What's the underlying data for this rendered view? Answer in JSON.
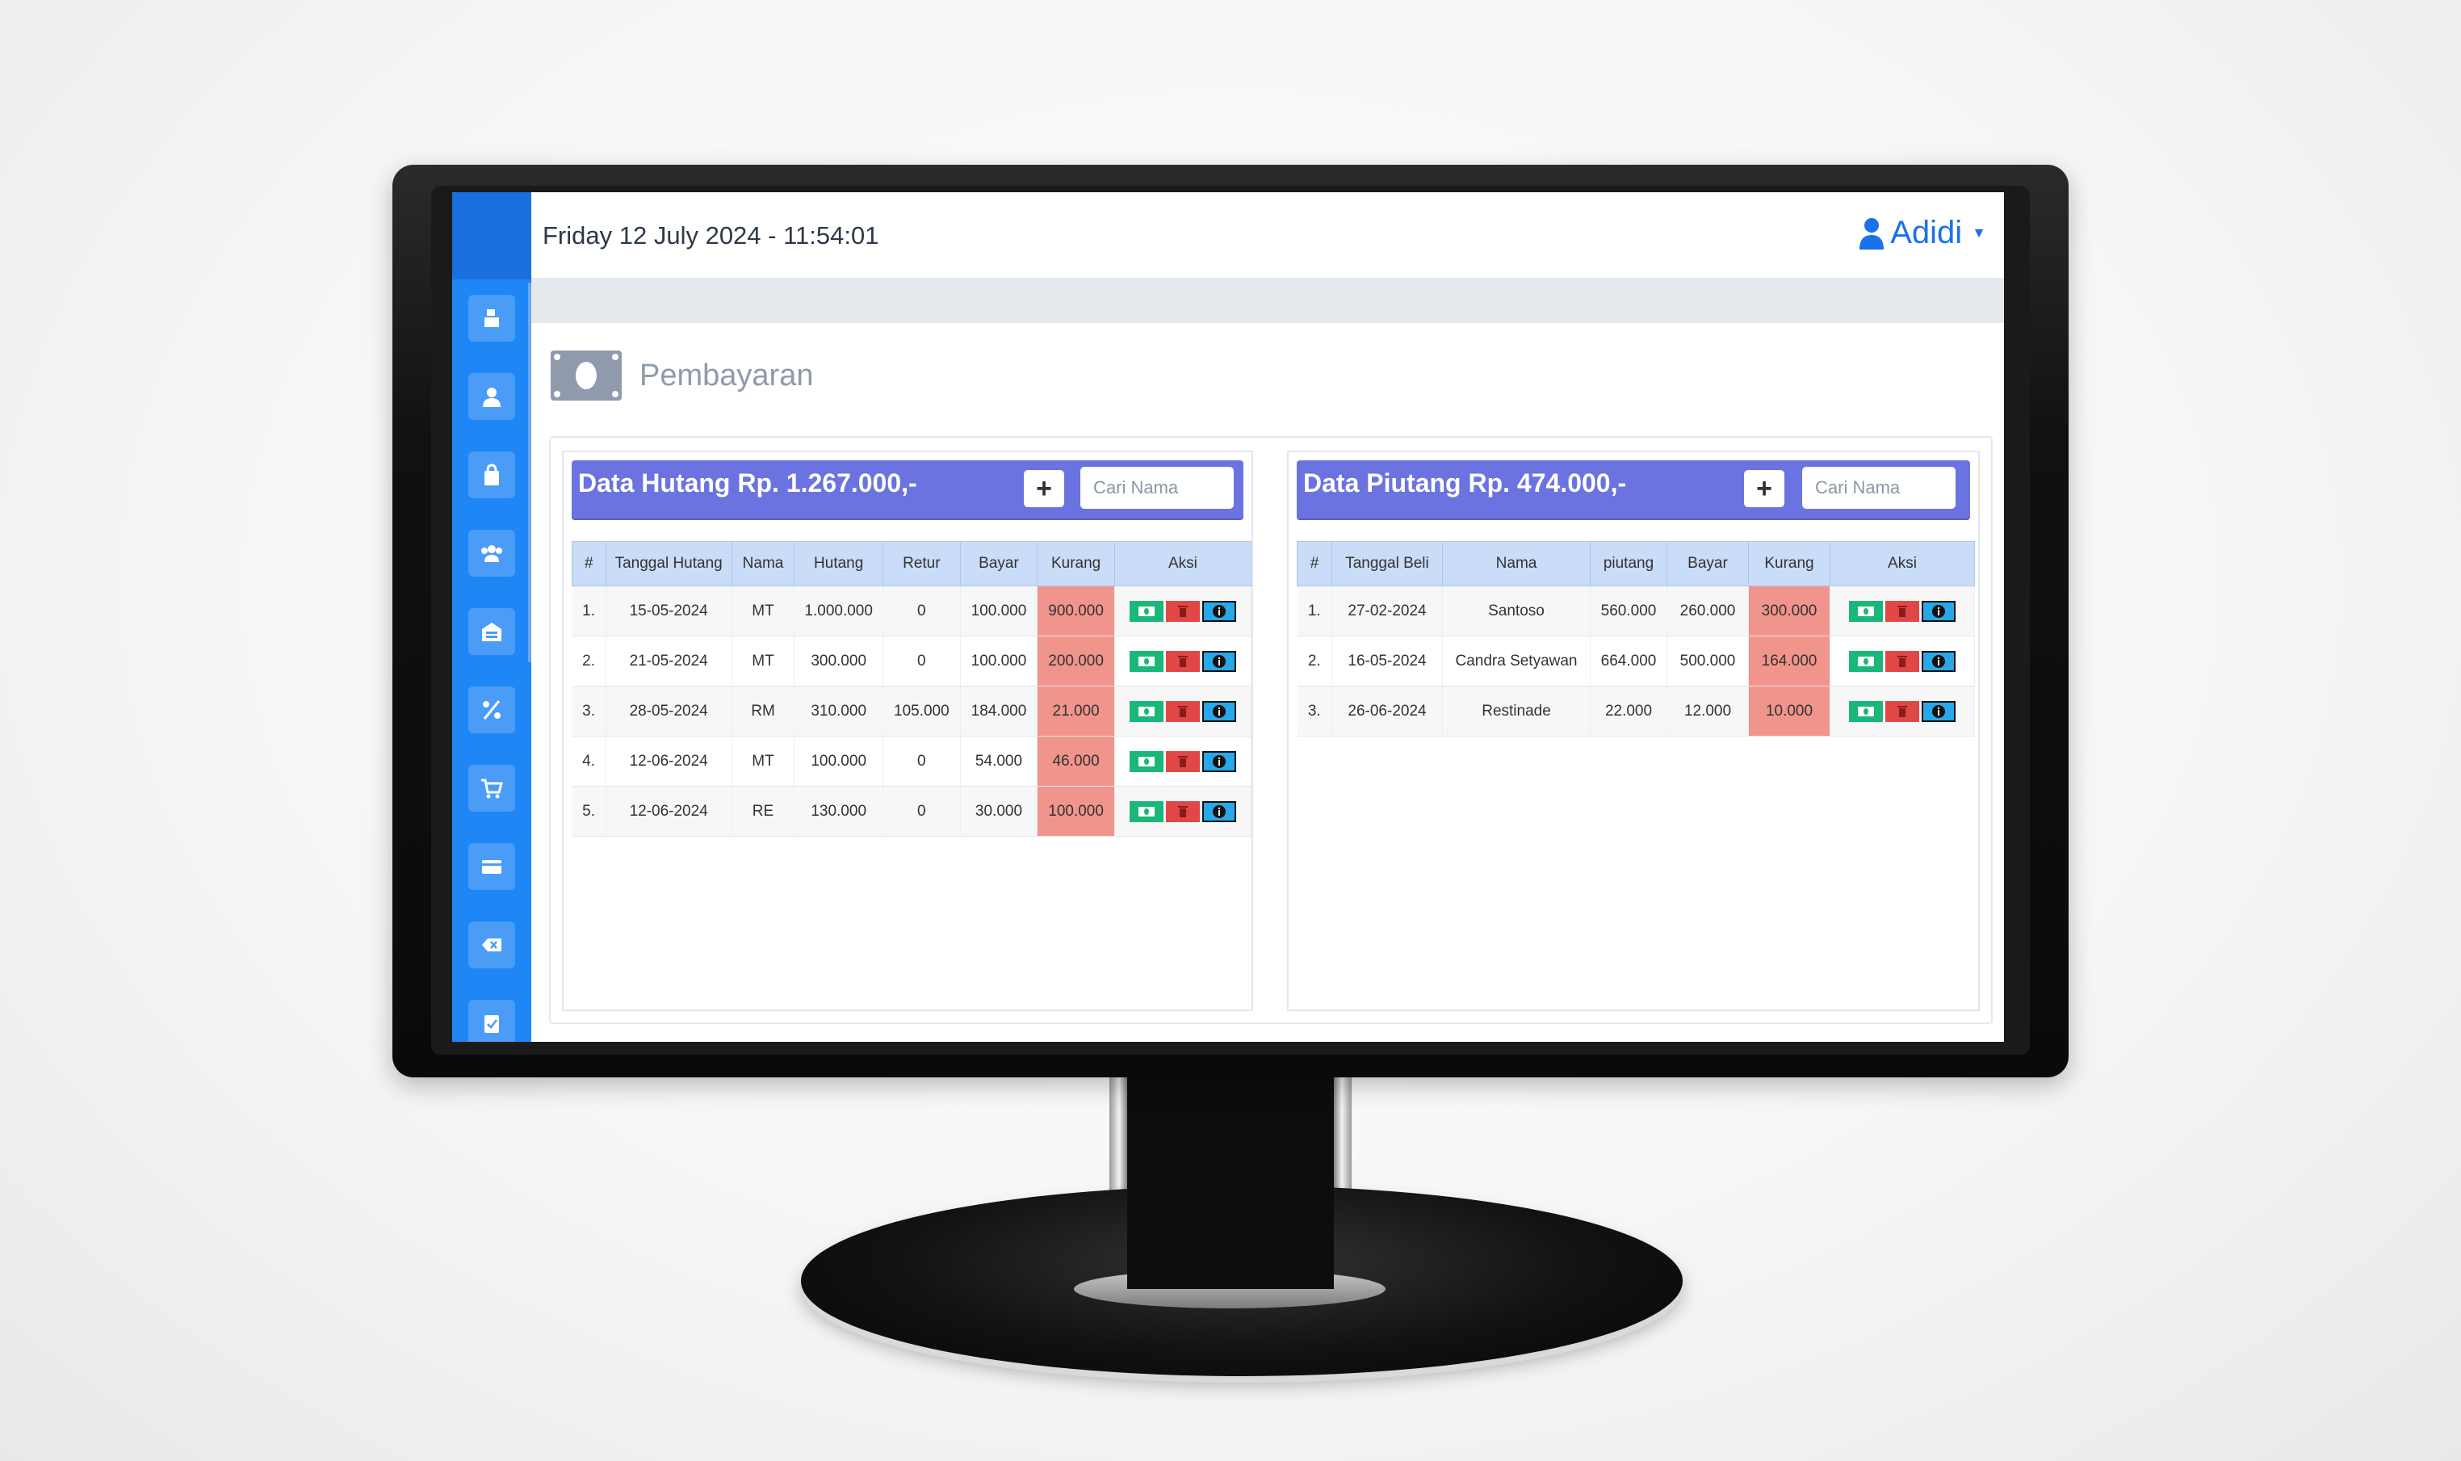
{
  "header": {
    "datetime": "Friday 12 July 2024 - 11:54:01",
    "user_name": "Adidi"
  },
  "sidebar": {
    "items": [
      {
        "icon": "cash-register-icon"
      },
      {
        "icon": "user-icon"
      },
      {
        "icon": "shopping-bag-icon"
      },
      {
        "icon": "users-icon"
      },
      {
        "icon": "warehouse-icon"
      },
      {
        "icon": "percent-icon"
      },
      {
        "icon": "cart-icon"
      },
      {
        "icon": "credit-card-icon"
      },
      {
        "icon": "backspace-icon"
      },
      {
        "icon": "clipboard-check-icon"
      }
    ]
  },
  "page": {
    "title": "Pembayaran"
  },
  "hutang": {
    "title": "Data Hutang Rp. 1.267.000,-",
    "add_label": "+",
    "search_placeholder": "Cari Nama",
    "columns": [
      "#",
      "Tanggal Hutang",
      "Nama",
      "Hutang",
      "Retur",
      "Bayar",
      "Kurang",
      "Aksi"
    ],
    "rows": [
      {
        "no": "1.",
        "tanggal": "15-05-2024",
        "nama": "MT",
        "hutang": "1.000.000",
        "retur": "0",
        "bayar": "100.000",
        "kurang": "900.000"
      },
      {
        "no": "2.",
        "tanggal": "21-05-2024",
        "nama": "MT",
        "hutang": "300.000",
        "retur": "0",
        "bayar": "100.000",
        "kurang": "200.000"
      },
      {
        "no": "3.",
        "tanggal": "28-05-2024",
        "nama": "RM",
        "hutang": "310.000",
        "retur": "105.000",
        "bayar": "184.000",
        "kurang": "21.000"
      },
      {
        "no": "4.",
        "tanggal": "12-06-2024",
        "nama": "MT",
        "hutang": "100.000",
        "retur": "0",
        "bayar": "54.000",
        "kurang": "46.000"
      },
      {
        "no": "5.",
        "tanggal": "12-06-2024",
        "nama": "RE",
        "hutang": "130.000",
        "retur": "0",
        "bayar": "30.000",
        "kurang": "100.000"
      }
    ]
  },
  "piutang": {
    "title": "Data Piutang Rp. 474.000,-",
    "add_label": "+",
    "search_placeholder": "Cari Nama",
    "columns": [
      "#",
      "Tanggal Beli",
      "Nama",
      "piutang",
      "Bayar",
      "Kurang",
      "Aksi"
    ],
    "rows": [
      {
        "no": "1.",
        "tanggal": "27-02-2024",
        "nama": "Santoso",
        "piutang": "560.000",
        "bayar": "260.000",
        "kurang": "300.000"
      },
      {
        "no": "2.",
        "tanggal": "16-05-2024",
        "nama": "Candra Setyawan",
        "piutang": "664.000",
        "bayar": "500.000",
        "kurang": "164.000"
      },
      {
        "no": "3.",
        "tanggal": "26-06-2024",
        "nama": "Restinade",
        "piutang": "22.000",
        "bayar": "12.000",
        "kurang": "10.000"
      }
    ]
  },
  "colors": {
    "sidebar": "#1f86f6",
    "panel_header": "#6b73e0",
    "table_header": "#c9dcf8",
    "kurang_cell": "#f0948c",
    "pay_button": "#19b87a",
    "delete_button": "#e04848",
    "info_button": "#28a8e8"
  }
}
